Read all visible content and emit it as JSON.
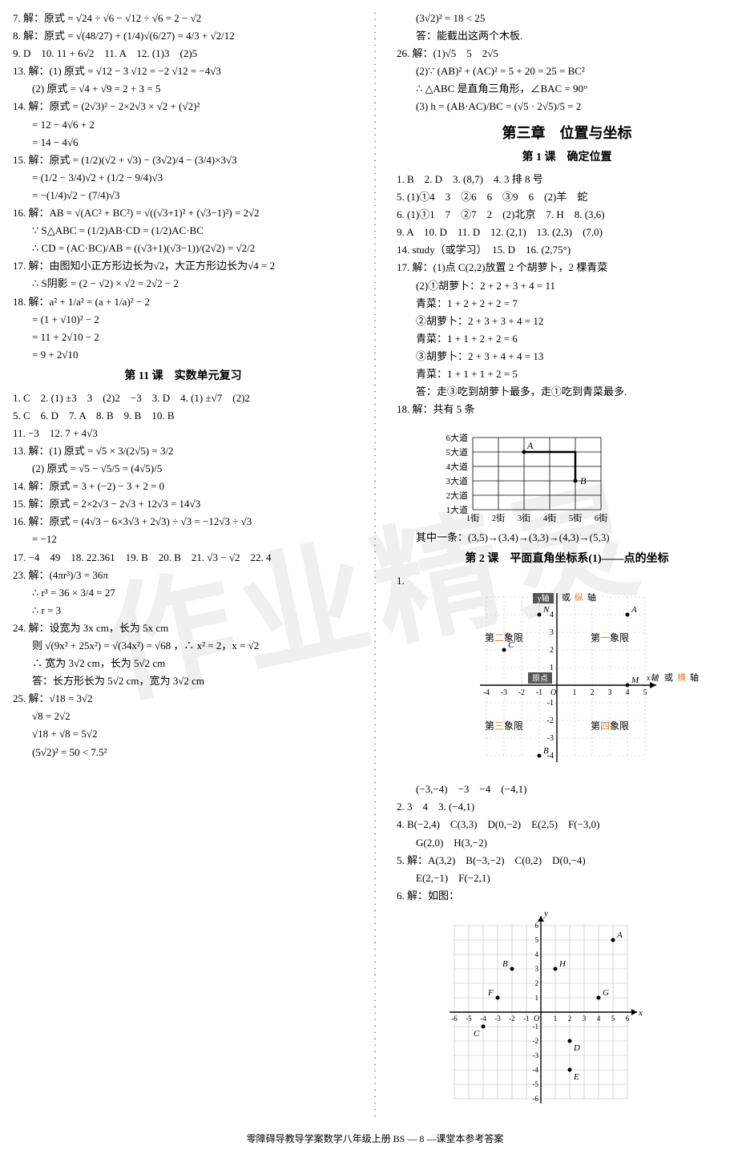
{
  "left": {
    "l7": "7. 解：原式 = √24 ÷ √6 − √12 ÷ √6 = 2 − √2",
    "l8": "8. 解：原式 = √(48/27) + (1/4)√(6/27) = 4/3 + √2/12",
    "l9": "9. D　10. 11 + 6√2　11. A　12. (1)3　(2)5",
    "l13a": "13. 解：(1) 原式 = √12 − 3 √12 = −2 √12 = −4√3",
    "l13b": "(2) 原式 = √4 + √9 = 2 + 3 = 5",
    "l14a": "14. 解：原式 = (2√3)² − 2×2√3 × √2 + (√2)²",
    "l14b": "= 12 − 4√6 + 2",
    "l14c": "= 14 − 4√6",
    "l15a": "15. 解：原式 = (1/2)(√2 + √3) − (3√2)/4 − (3/4)×3√3",
    "l15b": "= (1/2 − 3/4)√2 + (1/2 − 9/4)√3",
    "l15c": "= −(1/4)√2 − (7/4)√3",
    "l16a": "16. 解：AB = √(AC² + BC²) = √((√3+1)² + (√3−1)²) = 2√2",
    "l16b": "∵ S△ABC = (1/2)AB·CD = (1/2)AC·BC",
    "l16c": "∴ CD = (AC·BC)/AB = ((√3+1)(√3−1))/(2√2) = √2/2",
    "l17a": "17. 解：由图知小正方形边长为√2，大正方形边长为√4 = 2",
    "l17b": "∴ S阴影 = (2 − √2) × √2 = 2√2 − 2",
    "l18a": "18. 解：a² + 1/a² = (a + 1/a)² − 2",
    "l18b": "= (1 + √10)² − 2",
    "l18c": "= 11 + 2√10 − 2",
    "l18d": "= 9 + 2√10",
    "lesson11": "第 11 课　实数单元复习",
    "r1": "1. C　2. (1) ±3　3　(2)2　−3　3. D　4. (1) ±√7　(2)2",
    "r2": "5. C　6. D　7. A　8. B　9. B　10. B",
    "r3": "11. −3　12. 7 + 4√3",
    "r13a": "13. 解：(1) 原式 = √5 × 3/(2√5) = 3/2",
    "r13b": "(2) 原式 = √5 − √5/5 = (4√5)/5",
    "r14": "14. 解：原式 = 3 + (−2) − 3 + 2 = 0",
    "r15": "15. 解：原式 = 2×2√3 − 2√3 + 12√3 = 14√3",
    "r16a": "16. 解：原式 = (4√3 − 6×3√3 + 2√3) ÷ √3 = −12√3 ÷ √3",
    "r16b": "= −12",
    "r17": "17. −4　49　18. 22.361　19. B　20. B　21. √3 − √2　22. 4",
    "r23a": "23. 解：(4πr³)/3 = 36π",
    "r23b": "∴ r³ = 36 × 3/4 = 27",
    "r23c": "∴ r = 3",
    "r24a": "24. 解：设宽为 3x cm，长为 5x cm",
    "r24b": "则 √(9x² + 25x²) = √(34x²) = √68 ，∴ x² = 2，x = √2",
    "r24c": "∴ 宽为 3√2 cm，长为 5√2 cm",
    "r24d": "答：长方形长为 5√2 cm，宽为 3√2 cm",
    "r25a": "25. 解：√18 = 3√2",
    "r25b": "√8 = 2√2",
    "r25c": "√18 + √8 = 5√2",
    "r25d": "(5√2)² = 50 < 7.5²"
  },
  "right": {
    "t1": "(3√2)² = 18 < 25",
    "t2": "答：能截出这两个木板.",
    "l26a": "26. 解：(1)√5　5　2√5",
    "l26b": "(2)∵ (AB)² + (AC)² = 5 + 20 = 25 = BC²",
    "l26c": "∴ △ABC 是直角三角形，∠BAC = 90°",
    "l26d": "(3) h = (AB·AC)/BC = (√5 · 2√5)/5 = 2",
    "chapter3": "第三章　位置与坐标",
    "lesson1": "第 1 课　确定位置",
    "c1": "1. B　2. D　3. (8,7)　4. 3 排 8 号",
    "c2": "5. (1)①4　3　②6　6　③9　6　(2)羊　蛇",
    "c3": "6. (1)①1　7　②7　2　(2)北京　7. H　8. (3,6)",
    "c4": "9. A　10. D　11. D　12. (2,1)　13. (2,3)　(7,0)",
    "c5": "14. study（或学习）　15. D　16. (2,75°)",
    "c6": "17. 解：(1)点 C(2,2)放置 2 个胡萝卜，2 棵青菜",
    "c7": "(2)①胡萝卜：2 + 2 + 3 + 4 = 11",
    "c8": "青菜：1 + 2 + 2 + 2 = 7",
    "c9": "②胡萝卜：2 + 3 + 3 + 4 = 12",
    "c10": "青菜：1 + 1 + 2 + 2 = 6",
    "c11": "③胡萝卜：2 + 3 + 4 + 4 = 13",
    "c12": "青菜：1 + 1 + 1 + 2 = 5",
    "c13": "答：走③吃到胡萝卜最多，走①吃到青菜最多.",
    "c14": "18. 解：共有 5 条",
    "c15": "其中一条：(3,5)→(3,4)→(3,3)→(4,3)→(5,3)",
    "lesson2": "第 2 课　平面直角坐标系(1)——点的坐标",
    "p1": "1.",
    "p1b": "(−3,−4)　−3　−4　(−4,1)",
    "p2": "2. 3　4　3. (−4,1)",
    "p3": "4. B(−2,4)　C(3,3)　D(0,−2)　E(2,5)　F(−3,0)",
    "p3b": "G(2,0)　H(3,−2)",
    "p4": "5. 解：A(3,2)　B(−3,−2)　C(0,2)　D(0,−4)",
    "p4b": "E(2,−1)　F(−2,1)",
    "p5": "6. 解：如图："
  },
  "diagram18": {
    "ylabels": [
      "6大道",
      "5大道",
      "4大道",
      "3大道",
      "2大道",
      "1大道"
    ],
    "xlabels": [
      "1街",
      "2街",
      "3街",
      "4街",
      "5街",
      "6街"
    ],
    "A": [
      3,
      5
    ],
    "B": [
      5,
      3
    ],
    "grid_color": "#000",
    "font_size": 11
  },
  "coordplane": {
    "labels": {
      "yaxis": "y轴",
      "xaxis": "x轴",
      "origin": "原点",
      "vert": "纵",
      "horiz": "横"
    },
    "quadrants": [
      "第一象限",
      "第二象限",
      "第三象限",
      "第四象限"
    ],
    "points": {
      "N": [
        -1,
        4
      ],
      "A": [
        4,
        4
      ],
      "C": [
        -3,
        2
      ],
      "M": [
        4,
        0
      ],
      "B": [
        -1,
        -4
      ]
    },
    "orange": "#e67e22",
    "grid": "#bbb",
    "xlim": [
      -4,
      5
    ],
    "ylim": [
      -4,
      5
    ]
  },
  "diagram6": {
    "points": {
      "A": [
        5,
        5
      ],
      "B": [
        -2,
        3
      ],
      "H": [
        1,
        3
      ],
      "F": [
        -3,
        1
      ],
      "G": [
        4,
        1
      ],
      "C": [
        -4,
        -1
      ],
      "D": [
        2,
        -2
      ],
      "E": [
        2,
        -4
      ]
    },
    "xlim": [
      -6,
      6
    ],
    "ylim": [
      -6,
      6
    ],
    "grid": "#bbb"
  },
  "footer": "零障碍导教导学案数学八年级上册 BS — 8 —课堂本参考答案",
  "watermark": "作业精灵"
}
